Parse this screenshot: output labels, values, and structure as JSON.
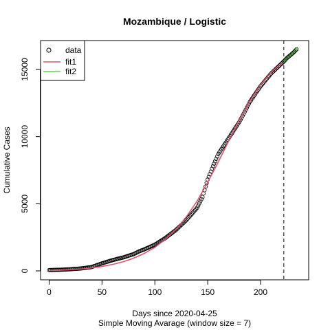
{
  "chart_data": {
    "type": "scatter",
    "title": "Mozambique / Logistic",
    "xlabel": "Days since 2020-04-25",
    "subtitle": "Simple Moving Avarage (window size = 7)",
    "ylabel": "Cumulative Cases",
    "xlim": [
      0,
      236
    ],
    "ylim": [
      0,
      16600
    ],
    "x_ticks": [
      0,
      50,
      100,
      150,
      200
    ],
    "y_ticks": [
      0,
      5000,
      10000,
      15000
    ],
    "vline_x": 222,
    "legend": {
      "position": "top-left",
      "entries": [
        {
          "label": "data",
          "kind": "point",
          "color": "#000000"
        },
        {
          "label": "fit1",
          "kind": "line",
          "color": "#DF536B"
        },
        {
          "label": "fit2",
          "kind": "line",
          "color": "#61D04F"
        }
      ]
    },
    "series": [
      {
        "name": "data",
        "kind": "points",
        "color": "#000000",
        "days": [
          0,
          10,
          20,
          30,
          40,
          45,
          50,
          60,
          70,
          80,
          85,
          90,
          100,
          110,
          120,
          130,
          135,
          140,
          145,
          150,
          155,
          160,
          165,
          170,
          180,
          190,
          200,
          210,
          222
        ],
        "cases": [
          60,
          80,
          120,
          180,
          280,
          420,
          560,
          800,
          1000,
          1250,
          1450,
          1600,
          1950,
          2450,
          3050,
          3800,
          4250,
          4700,
          5500,
          6800,
          7800,
          8700,
          9300,
          9900,
          11100,
          12600,
          13750,
          14700,
          15600
        ]
      },
      {
        "name": "fit1",
        "kind": "line",
        "color": "#DF536B",
        "days": [
          0,
          10,
          20,
          30,
          40,
          50,
          60,
          70,
          80,
          90,
          100,
          110,
          120,
          130,
          140,
          150,
          160,
          170,
          180,
          190,
          200,
          210,
          222
        ],
        "cases": [
          30,
          50,
          90,
          140,
          220,
          330,
          480,
          680,
          950,
          1300,
          1750,
          2350,
          3100,
          4050,
          5200,
          6600,
          8100,
          9700,
          11250,
          12650,
          13850,
          14800,
          15600
        ]
      },
      {
        "name": "fit2",
        "kind": "points",
        "color": "#61D04F",
        "days": [
          222,
          225,
          228,
          231,
          234
        ],
        "cases": [
          15600,
          15850,
          16050,
          16250,
          16500
        ]
      }
    ]
  }
}
